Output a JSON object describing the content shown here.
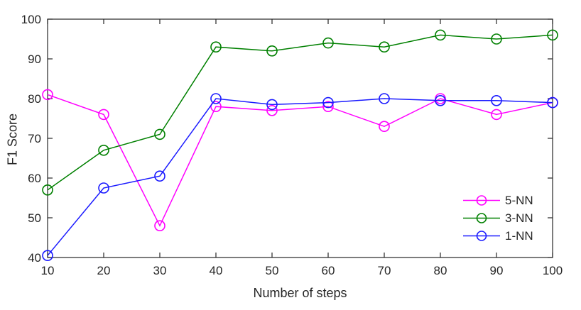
{
  "chart_data": {
    "type": "line",
    "title": "",
    "xlabel": "Number of steps",
    "ylabel": "F1 Score",
    "x": [
      10,
      20,
      30,
      40,
      50,
      60,
      70,
      80,
      90,
      100
    ],
    "xlim": [
      10,
      100
    ],
    "ylim": [
      40,
      100
    ],
    "xticks": [
      10,
      20,
      30,
      40,
      50,
      60,
      70,
      80,
      90,
      100
    ],
    "yticks": [
      40,
      50,
      60,
      70,
      80,
      90,
      100
    ],
    "grid": "off",
    "marker": "circle-hollow",
    "axis_color": "#262626",
    "background_color": "#ffffff",
    "series": [
      {
        "name": "5-NN",
        "color": "#ff00ff",
        "values": [
          81,
          76,
          48,
          78,
          77,
          78,
          73,
          80,
          76,
          79
        ]
      },
      {
        "name": "3-NN",
        "color": "#008000",
        "values": [
          57,
          67,
          71,
          93,
          92,
          94,
          93,
          96,
          95,
          96
        ]
      },
      {
        "name": "1-NN",
        "color": "#1a1aff",
        "values": [
          40.5,
          57.5,
          60.5,
          80,
          78.5,
          79,
          80,
          79.5,
          79.5,
          79
        ]
      }
    ],
    "legend": {
      "position": "southeast",
      "entries": [
        "5-NN",
        "3-NN",
        "1-NN"
      ]
    }
  }
}
